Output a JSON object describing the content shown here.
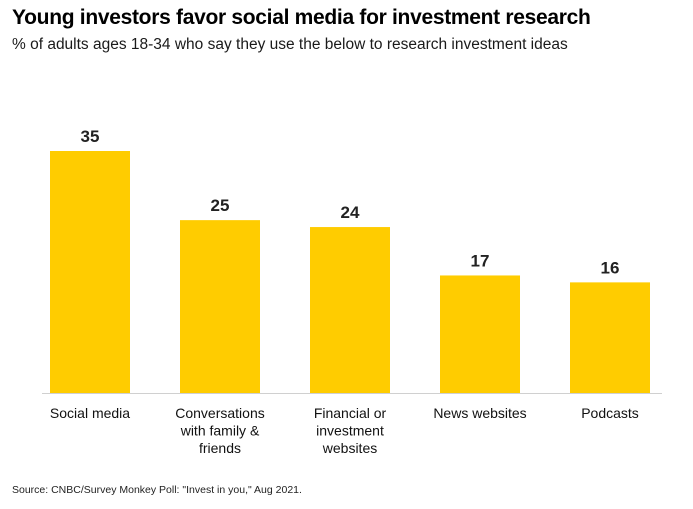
{
  "header": {
    "title": "Young investors favor social media for investment research",
    "subtitle": "% of adults ages 18-34 who say they use the below to research investment ideas"
  },
  "footer": {
    "source": "Source: CNBC/Survey Monkey Poll: \"Invest in you,\" Aug 2021."
  },
  "chart_data": {
    "type": "bar",
    "categories": [
      [
        "Social media"
      ],
      [
        "Conversations",
        "with family &",
        "friends"
      ],
      [
        "Financial or",
        "investment",
        "websites"
      ],
      [
        "News websites"
      ],
      [
        "Podcasts"
      ]
    ],
    "values": [
      35,
      25,
      24,
      17,
      16
    ],
    "data_labels": [
      "35",
      "25",
      "24",
      "17",
      "16"
    ],
    "ylim": [
      0,
      35
    ],
    "grid": false,
    "legend": "none",
    "bar_color": "#FFCC00",
    "baseline_color": "#d0d0d0"
  }
}
